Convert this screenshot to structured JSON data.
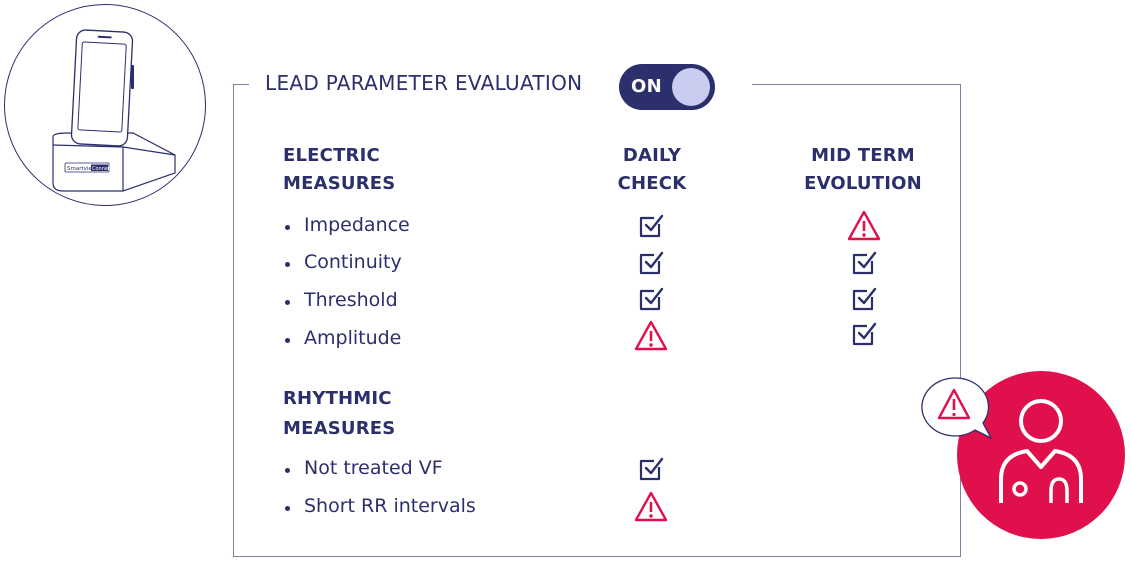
{
  "device": {
    "brand_text": "Smartview",
    "brand_suffix": "Connect"
  },
  "panel": {
    "title": "LEAD PARAMETER EVALUATION",
    "toggle_label": "ON"
  },
  "columns": {
    "daily_check": [
      "DAILY",
      "CHECK"
    ],
    "mid_term": [
      "MID TERM",
      "EVOLUTION"
    ]
  },
  "electric": {
    "heading": [
      "ELECTRIC",
      "MEASURES"
    ],
    "items": [
      {
        "label": "Impedance",
        "daily": "check",
        "mid_term": "warning"
      },
      {
        "label": "Continuity",
        "daily": "check",
        "mid_term": "check"
      },
      {
        "label": "Threshold",
        "daily": "check",
        "mid_term": "check"
      },
      {
        "label": "Amplitude",
        "daily": "warning",
        "mid_term": "check"
      }
    ]
  },
  "rhythmic": {
    "heading": [
      "RHYTHMIC",
      "MEASURES"
    ],
    "items": [
      {
        "label": "Not treated VF",
        "daily": "check"
      },
      {
        "label": "Short RR intervals",
        "daily": "warning"
      }
    ]
  },
  "colors": {
    "navy": "#2b2f6b",
    "alert_red": "#e0104d",
    "knob": "#c9cdef"
  },
  "icons": [
    "check-icon",
    "warning-icon",
    "doctor-icon",
    "speech-bubble-icon",
    "phone-dock-icon"
  ]
}
